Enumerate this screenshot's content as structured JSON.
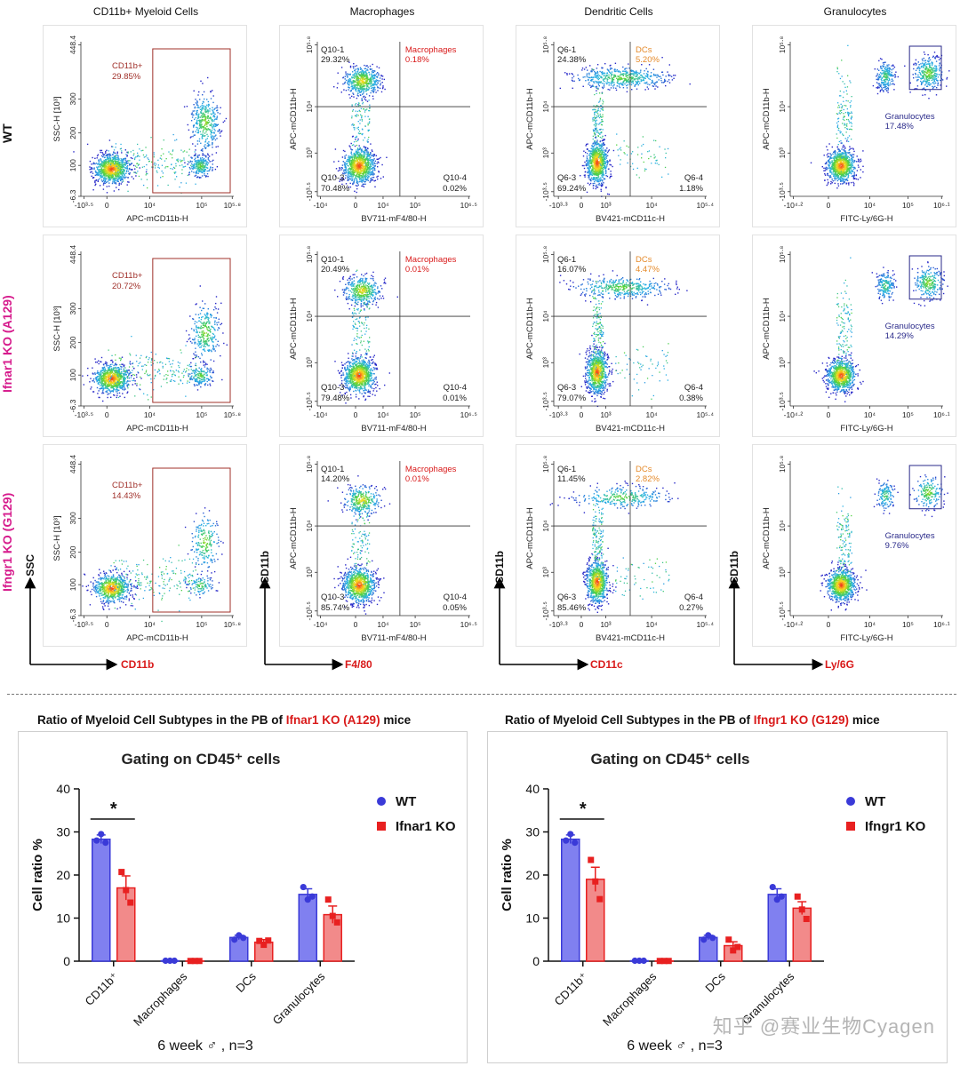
{
  "columns": [
    "CD11b+ Myeloid Cells",
    "Macrophages",
    "Dendritic Cells",
    "Granulocytes"
  ],
  "rows": [
    "WT",
    "Ifnar1 KO (A129)",
    "Ifngr1 KO (G129)"
  ],
  "colors": {
    "row_label_wt": "#111111",
    "row_label_ko": "#d61a8c",
    "red": "#d91a1a",
    "blue": "#3a3ad8",
    "orange": "#e58a2a",
    "navy": "#2a2a8a"
  },
  "flow_axes": {
    "cd11b": {
      "x_label": "APC-mCD11b-H",
      "y_label": "SSC-H [10³]",
      "x_ticks": [
        "-10³·⁵",
        "0",
        "10⁴",
        "10⁵",
        "10⁵·⁸"
      ],
      "y_ticks": [
        "448.4",
        "300",
        "200",
        "100",
        "-6.3"
      ]
    },
    "macro": {
      "x_label": "BV711-mF4/80-H",
      "y_label": "APC-mCD11b-H",
      "x_ticks": [
        "-10⁴",
        "0",
        "10⁴",
        "10⁵",
        "10⁶·⁵"
      ],
      "y_ticks": [
        "10⁵·⁸",
        "10⁴",
        "10³",
        "-10³·⁵"
      ]
    },
    "dc": {
      "x_label": "BV421-mCD11c-H",
      "y_label": "APC-mCD11b-H",
      "x_ticks": [
        "-10³·³",
        "0",
        "10³",
        "10⁴",
        "10⁵·⁴"
      ],
      "y_ticks": [
        "10⁵·⁸",
        "10⁴",
        "10³",
        "-10³·⁵"
      ]
    },
    "gran": {
      "x_label": "FITC-Ly/6G-H",
      "y_label": "APC-mCD11b-H",
      "x_ticks": [
        "-10⁴·²",
        "0",
        "10⁴",
        "10⁵",
        "10⁶·¹"
      ],
      "y_ticks": [
        "10⁵·⁸",
        "10⁴",
        "10³",
        "-10³·⁵"
      ]
    }
  },
  "flow_gates": [
    {
      "cd11b": {
        "name": "CD11b+",
        "pct": "29.85%"
      },
      "macro": {
        "q1": "Q10-1",
        "q1p": "29.32%",
        "q2": "Macrophages",
        "q2p": "0.18%",
        "q3": "Q10-3",
        "q3p": "70.48%",
        "q4": "Q10-4",
        "q4p": "0.02%"
      },
      "dc": {
        "q1": "Q6-1",
        "q1p": "24.38%",
        "q2": "DCs",
        "q2p": "5.20%",
        "q3": "Q6-3",
        "q3p": "69.24%",
        "q4": "Q6-4",
        "q4p": "1.18%"
      },
      "gran": {
        "name": "Granulocytes",
        "pct": "17.48%"
      }
    },
    {
      "cd11b": {
        "name": "CD11b+",
        "pct": "20.72%"
      },
      "macro": {
        "q1": "Q10-1",
        "q1p": "20.49%",
        "q2": "Macrophages",
        "q2p": "0.01%",
        "q3": "Q10-3",
        "q3p": "79.48%",
        "q4": "Q10-4",
        "q4p": "0.01%"
      },
      "dc": {
        "q1": "Q6-1",
        "q1p": "16.07%",
        "q2": "DCs",
        "q2p": "4.47%",
        "q3": "Q6-3",
        "q3p": "79.07%",
        "q4": "Q6-4",
        "q4p": "0.38%"
      },
      "gran": {
        "name": "Granulocytes",
        "pct": "14.29%"
      }
    },
    {
      "cd11b": {
        "name": "CD11b+",
        "pct": "14.43%"
      },
      "macro": {
        "q1": "Q10-1",
        "q1p": "14.20%",
        "q2": "Macrophages",
        "q2p": "0.01%",
        "q3": "Q10-3",
        "q3p": "85.74%",
        "q4": "Q10-4",
        "q4p": "0.05%"
      },
      "dc": {
        "q1": "Q6-1",
        "q1p": "11.45%",
        "q2": "DCs",
        "q2p": "2.82%",
        "q3": "Q6-3",
        "q3p": "85.46%",
        "q4": "Q6-4",
        "q4p": "0.27%"
      },
      "gran": {
        "name": "Granulocytes",
        "pct": "9.76%"
      }
    }
  ],
  "axis_arrows": [
    {
      "y": "SSC",
      "x": "CD11b"
    },
    {
      "y": "CD11b",
      "x": "F4/80"
    },
    {
      "y": "CD11b",
      "x": "CD11c"
    },
    {
      "y": "CD11b",
      "x": "Ly/6G"
    }
  ],
  "bar_titles": [
    {
      "prefix": "Ratio of Myeloid Cell Subtypes in the PB of ",
      "highlight": "Ifnar1 KO (A129)",
      "suffix": " mice"
    },
    {
      "prefix": "Ratio of Myeloid Cell Subtypes in the PB of ",
      "highlight": "Ifngr1 KO (G129)",
      "suffix": " mice"
    }
  ],
  "watermark": "知乎 @赛业生物Cyagen",
  "chart_data": [
    {
      "type": "bar",
      "title": "Gating on CD45⁺ cells",
      "ylabel": "Cell ratio %",
      "xlabel": "",
      "ylim": [
        0,
        40
      ],
      "yticks": [
        0,
        10,
        20,
        30,
        40
      ],
      "categories": [
        "CD11b⁺",
        "Macrophages",
        "DCs",
        "Granulocytes"
      ],
      "series": [
        {
          "name": "WT",
          "values": [
            28.3,
            0.1,
            5.5,
            15.5
          ],
          "errors": [
            1.0,
            0.0,
            0.5,
            1.3
          ],
          "points": [
            [
              28.0,
              29.5,
              27.5
            ],
            [
              0.1,
              0.1,
              0.1
            ],
            [
              5.0,
              6.0,
              5.4
            ],
            [
              17.2,
              14.3,
              15.0
            ]
          ]
        },
        {
          "name": "Ifnar1 KO",
          "values": [
            17.0,
            0.05,
            4.4,
            10.8
          ],
          "errors": [
            2.8,
            0.0,
            0.6,
            2.0
          ],
          "points": [
            [
              20.7,
              16.5,
              13.6
            ],
            [
              0.05,
              0.05,
              0.05
            ],
            [
              4.7,
              3.8,
              4.8
            ],
            [
              14.3,
              10.5,
              9.0
            ]
          ]
        }
      ],
      "significance": {
        "label": "*",
        "between": "CD11b⁺"
      },
      "footnote": "6 week ♂ , n=3"
    },
    {
      "type": "bar",
      "title": "Gating on CD45⁺ cells",
      "ylabel": "Cell ratio %",
      "xlabel": "",
      "ylim": [
        0,
        40
      ],
      "yticks": [
        0,
        10,
        20,
        30,
        40
      ],
      "categories": [
        "CD11b⁺",
        "Macrophages",
        "DCs",
        "Granulocytes"
      ],
      "series": [
        {
          "name": "WT",
          "values": [
            28.3,
            0.1,
            5.5,
            15.5
          ],
          "errors": [
            1.0,
            0.0,
            0.5,
            1.3
          ],
          "points": [
            [
              28.0,
              29.5,
              27.5
            ],
            [
              0.1,
              0.1,
              0.1
            ],
            [
              5.0,
              6.0,
              5.4
            ],
            [
              17.2,
              14.3,
              15.0
            ]
          ]
        },
        {
          "name": "Ifngr1 KO",
          "values": [
            19.0,
            0.05,
            3.6,
            12.3
          ],
          "errors": [
            2.8,
            0.0,
            0.9,
            1.5
          ],
          "points": [
            [
              23.5,
              18.5,
              14.4
            ],
            [
              0.05,
              0.05,
              0.05
            ],
            [
              5.0,
              2.5,
              3.3
            ],
            [
              15.0,
              12.0,
              9.8
            ]
          ]
        }
      ],
      "significance": {
        "label": "*",
        "between": "CD11b⁺"
      },
      "footnote": "6 week ♂ , n=3"
    }
  ]
}
